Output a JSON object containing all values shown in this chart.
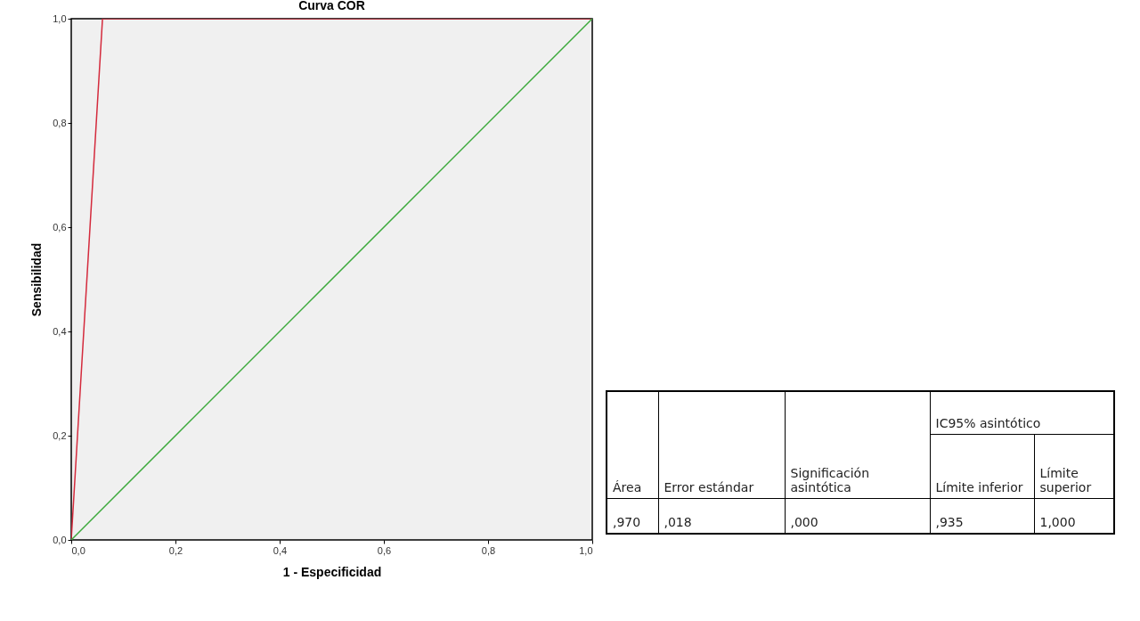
{
  "chart_data": [
    {
      "type": "line",
      "title": "Curva COR",
      "xlabel": "1 - Especificidad",
      "ylabel": "Sensibilidad",
      "series": [
        {
          "color": "#d42a3c",
          "x": [
            0,
            0.06,
            1
          ],
          "values": [
            0,
            1,
            1
          ]
        },
        {
          "color": "#3daa3d",
          "x": [
            0,
            1
          ],
          "values": [
            0,
            1
          ]
        }
      ],
      "xlim": [
        0,
        1
      ],
      "ylim": [
        0,
        1
      ],
      "xticks": [
        {
          "value": 0,
          "label": "0,0"
        },
        {
          "value": 0.2,
          "label": "0,2"
        },
        {
          "value": 0.4,
          "label": "0,4"
        },
        {
          "value": 0.6,
          "label": "0,6"
        },
        {
          "value": 0.8,
          "label": "0,8"
        },
        {
          "value": 1,
          "label": "1,0"
        }
      ],
      "yticks": [
        {
          "value": 0,
          "label": "0,0"
        },
        {
          "value": 0.2,
          "label": "0,2"
        },
        {
          "value": 0.4,
          "label": "0,4"
        },
        {
          "value": 0.6,
          "label": "0,6"
        },
        {
          "value": 0.8,
          "label": "0,8"
        },
        {
          "value": 1,
          "label": "1,0"
        }
      ],
      "grid": false,
      "legend": false
    },
    {
      "type": "other",
      "categories": [
        "Área",
        "Error estándar",
        "Significación asintótica",
        "Límite inferior",
        "Límite superior"
      ],
      "annotations": [
        "IC95% asintótico",
        ",970",
        ",018",
        ",000",
        ",935",
        "1,000"
      ]
    }
  ]
}
